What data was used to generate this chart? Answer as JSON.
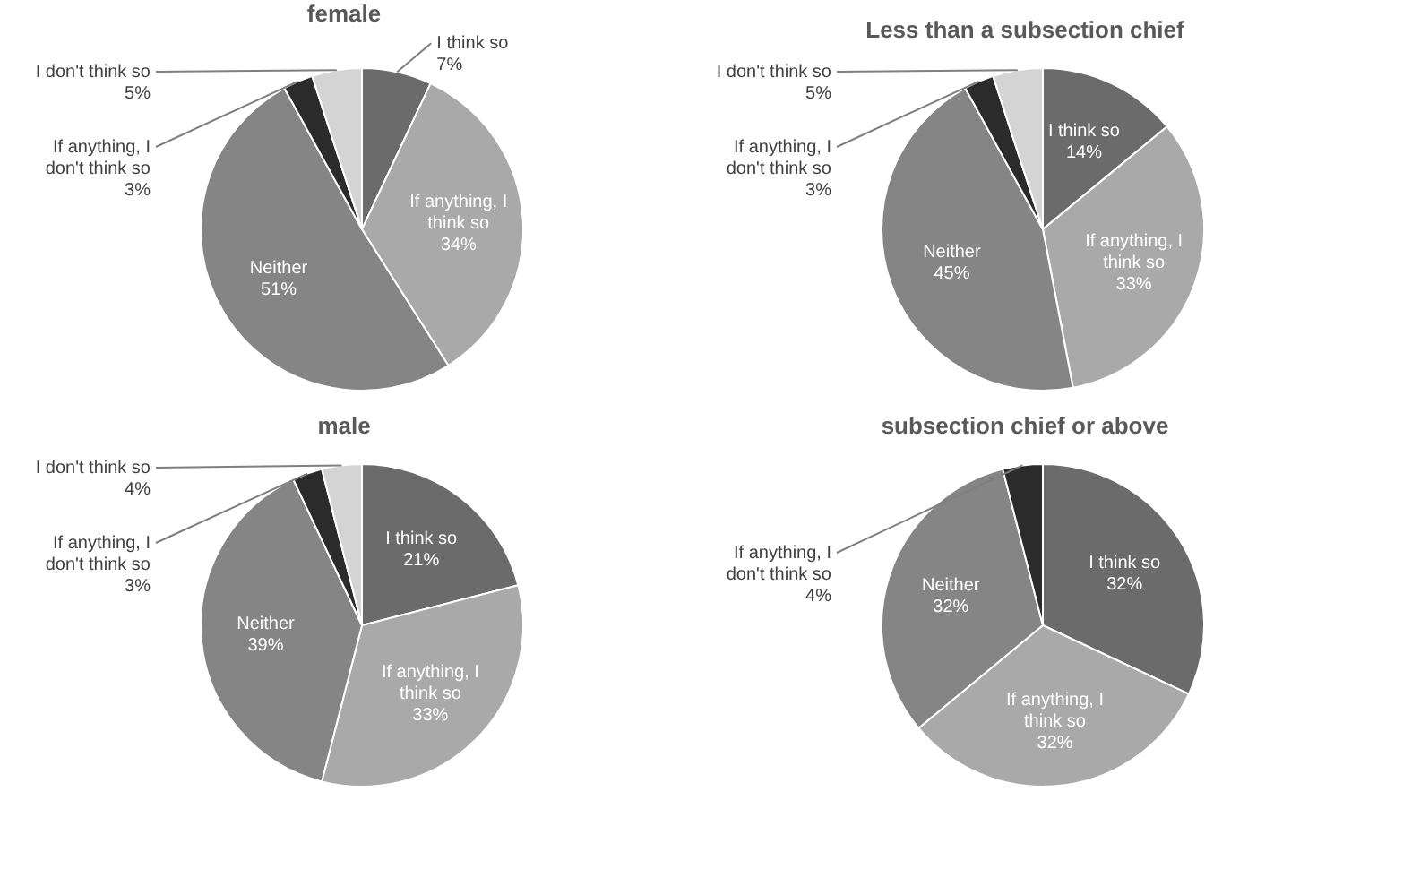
{
  "chart_data": [
    {
      "type": "pie",
      "title": "female",
      "categories": [
        "I think so",
        "If anything, I think so",
        "Neither",
        "If anything, I don't think so",
        "I don't think so"
      ],
      "values": [
        7,
        34,
        51,
        3,
        5
      ],
      "colors": [
        "#6b6b6b",
        "#a9a9a9",
        "#858585",
        "#2b2b2b",
        "#d4d4d4"
      ],
      "value_labels": [
        "7%",
        "34%",
        "51%",
        "3%",
        "5%"
      ]
    },
    {
      "type": "pie",
      "title": "Less than a subsection chief",
      "categories": [
        "I think so",
        "If anything, I think so",
        "Neither",
        "If anything, I don't think so",
        "I don't think so"
      ],
      "values": [
        14,
        33,
        45,
        3,
        5
      ],
      "colors": [
        "#6b6b6b",
        "#a9a9a9",
        "#858585",
        "#2b2b2b",
        "#d4d4d4"
      ],
      "value_labels": [
        "14%",
        "33%",
        "45%",
        "3%",
        "5%"
      ]
    },
    {
      "type": "pie",
      "title": "male",
      "categories": [
        "I think so",
        "If anything, I think so",
        "Neither",
        "If anything, I don't think so",
        "I don't think so"
      ],
      "values": [
        21,
        33,
        39,
        3,
        4
      ],
      "colors": [
        "#6b6b6b",
        "#a9a9a9",
        "#858585",
        "#2b2b2b",
        "#d4d4d4"
      ],
      "value_labels": [
        "21%",
        "33%",
        "39%",
        "3%",
        "4%"
      ]
    },
    {
      "type": "pie",
      "title": "subsection chief or above",
      "categories": [
        "I think so",
        "If anything, I think so",
        "Neither",
        "If anything, I don't think so"
      ],
      "values": [
        32,
        32,
        32,
        4
      ],
      "colors": [
        "#6b6b6b",
        "#a9a9a9",
        "#858585",
        "#2b2b2b"
      ],
      "value_labels": [
        "32%",
        "32%",
        "32%",
        "4%"
      ]
    }
  ]
}
